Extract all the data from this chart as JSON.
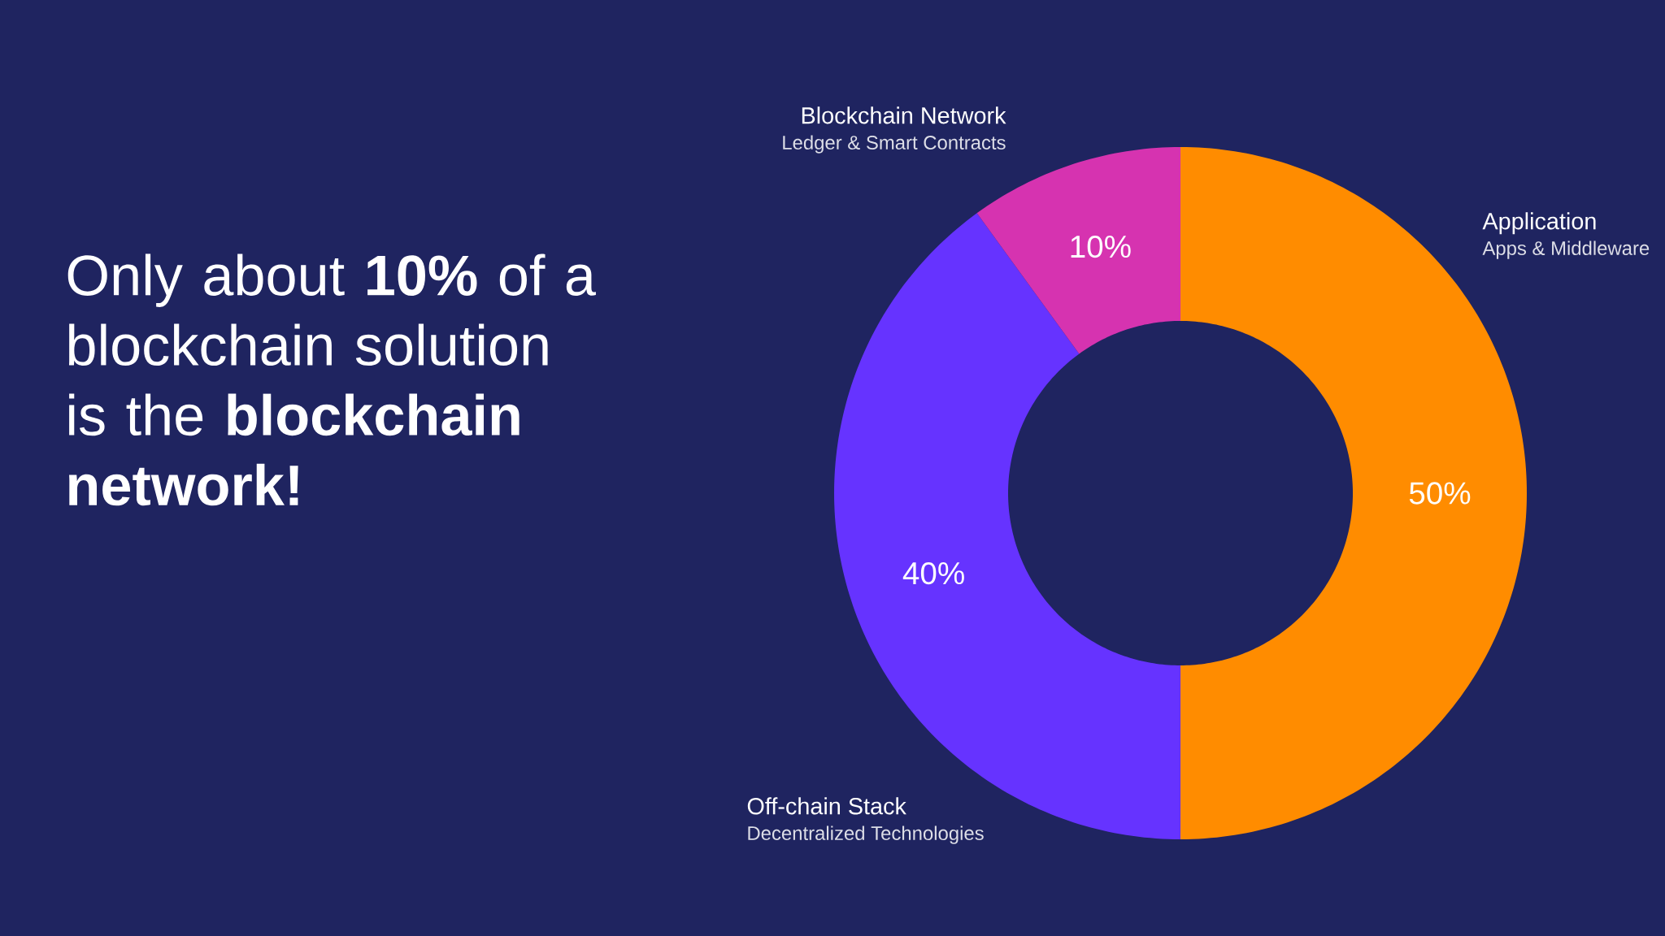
{
  "chart_data": {
    "type": "donut",
    "title": "Only about **10%** of a blockchain solution is the **blockchain network!**",
    "categories": [
      "Application",
      "Off-chain Stack",
      "Blockchain Network"
    ],
    "values": [
      50,
      40,
      10
    ],
    "value_labels": [
      "50%",
      "40%",
      "10%"
    ],
    "colors": [
      "#ff8c00",
      "#6633ff",
      "#d633b0"
    ],
    "annotations": [
      "Apps & Middleware",
      "Decentralized Technologies",
      "Ledger & Smart Contracts"
    ]
  }
}
